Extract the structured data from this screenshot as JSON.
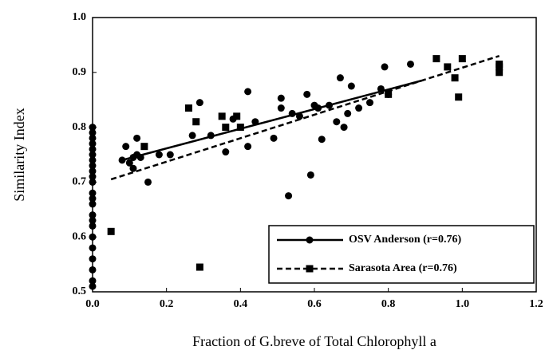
{
  "chart_data": {
    "type": "scatter",
    "xlabel": "Fraction of G.breve of Total Chlorophyll a",
    "ylabel": "Similarity Index",
    "xlim": [
      0,
      1.2
    ],
    "ylim": [
      0.5,
      1.0
    ],
    "xticks": [
      {
        "value": 0,
        "label": "0.0"
      },
      0.2,
      0.4,
      0.6,
      0.8,
      {
        "value": 1,
        "label": "1.0"
      },
      1.2
    ],
    "yticks": [
      0.5,
      0.6,
      0.7,
      0.8,
      0.9,
      {
        "value": 1,
        "label": "1.0"
      }
    ],
    "grid": false,
    "legend": "lower right",
    "series": [
      {
        "name": "OSV Anderson (r=0.76)",
        "color": "#000000",
        "marker": "circle",
        "line_style": "solid",
        "x": [
          0,
          0,
          0,
          0,
          0,
          0,
          0,
          0,
          0,
          0,
          0,
          0,
          0,
          0,
          0,
          0,
          0,
          0,
          0,
          0,
          0,
          0,
          0,
          0.08,
          0.09,
          0.1,
          0.11,
          0.11,
          0.12,
          0.12,
          0.13,
          0.15,
          0.18,
          0.21,
          0.27,
          0.29,
          0.32,
          0.36,
          0.38,
          0.42,
          0.42,
          0.44,
          0.49,
          0.51,
          0.51,
          0.53,
          0.54,
          0.56,
          0.58,
          0.59,
          0.6,
          0.61,
          0.62,
          0.64,
          0.66,
          0.67,
          0.68,
          0.69,
          0.7,
          0.72,
          0.75,
          0.78,
          0.79,
          0.8,
          0.86
        ],
        "values": [
          0.51,
          0.52,
          0.54,
          0.56,
          0.58,
          0.6,
          0.62,
          0.63,
          0.64,
          0.66,
          0.67,
          0.68,
          0.7,
          0.71,
          0.72,
          0.73,
          0.74,
          0.75,
          0.76,
          0.77,
          0.78,
          0.79,
          0.8,
          0.74,
          0.765,
          0.735,
          0.725,
          0.745,
          0.78,
          0.75,
          0.745,
          0.7,
          0.75,
          0.75,
          0.785,
          0.845,
          0.785,
          0.755,
          0.815,
          0.765,
          0.865,
          0.81,
          0.78,
          0.835,
          0.853,
          0.675,
          0.825,
          0.82,
          0.86,
          0.713,
          0.84,
          0.835,
          0.778,
          0.84,
          0.81,
          0.89,
          0.8,
          0.825,
          0.875,
          0.835,
          0.845,
          0.87,
          0.91,
          0.86,
          0.915
        ],
        "fit_x": [
          0.08,
          0.89
        ],
        "fit_y": [
          0.74,
          0.885
        ]
      },
      {
        "name": "Sarasota Area (r=0.76)",
        "color": "#000000",
        "marker": "square",
        "line_style": "dashed",
        "x": [
          0.05,
          0.14,
          0.26,
          0.28,
          0.29,
          0.35,
          0.36,
          0.39,
          0.4,
          0.8,
          0.93,
          0.96,
          0.98,
          0.99,
          1.0,
          1.1,
          1.1,
          1.1
        ],
        "values": [
          0.61,
          0.765,
          0.835,
          0.81,
          0.545,
          0.82,
          0.8,
          0.82,
          0.8,
          0.86,
          0.925,
          0.91,
          0.89,
          0.855,
          0.925,
          0.9,
          0.91,
          0.915
        ],
        "fit_x": [
          0.05,
          1.1
        ],
        "fit_y": [
          0.705,
          0.93
        ]
      }
    ]
  }
}
